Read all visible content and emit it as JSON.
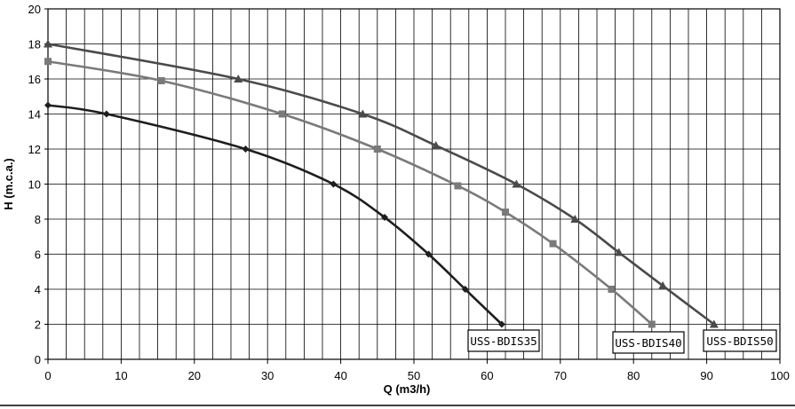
{
  "chart_data": {
    "type": "line",
    "title": "",
    "xlabel": "Q (m3/h)",
    "ylabel": "H (m.c.a.)",
    "xlim": [
      0,
      100
    ],
    "ylim": [
      0,
      20
    ],
    "x_ticks": [
      0,
      10,
      20,
      30,
      40,
      50,
      60,
      70,
      80,
      90,
      100
    ],
    "y_ticks": [
      0,
      2,
      4,
      6,
      8,
      10,
      12,
      14,
      16,
      18,
      20
    ],
    "grid": {
      "x_minor_step": 2.5,
      "y_step": 2
    },
    "legend": "none",
    "series": [
      {
        "name": "USS-BDIS35",
        "color": "#1e1e1e",
        "marker": "diamond",
        "points": [
          [
            0,
            14.5
          ],
          [
            8,
            14.0
          ],
          [
            27,
            12.0
          ],
          [
            39,
            10.0
          ],
          [
            46,
            8.1
          ],
          [
            52,
            6.0
          ],
          [
            57,
            4.0
          ],
          [
            62,
            2.0
          ]
        ]
      },
      {
        "name": "USS-BDIS40",
        "color": "#7a7a7a",
        "marker": "square",
        "points": [
          [
            0,
            17.0
          ],
          [
            15.5,
            15.9
          ],
          [
            32,
            14.0
          ],
          [
            45,
            12.0
          ],
          [
            56,
            9.9
          ],
          [
            62.5,
            8.4
          ],
          [
            69,
            6.6
          ],
          [
            77,
            4.0
          ],
          [
            82.5,
            2.0
          ]
        ]
      },
      {
        "name": "USS-BDIS50",
        "color": "#4a4a4a",
        "marker": "triangle",
        "points": [
          [
            0,
            18.0
          ],
          [
            26,
            16.0
          ],
          [
            43,
            14.0
          ],
          [
            53,
            12.2
          ],
          [
            64,
            10.0
          ],
          [
            72,
            8.0
          ],
          [
            78,
            6.1
          ],
          [
            84,
            4.2
          ],
          [
            91,
            2.0
          ]
        ]
      }
    ]
  }
}
